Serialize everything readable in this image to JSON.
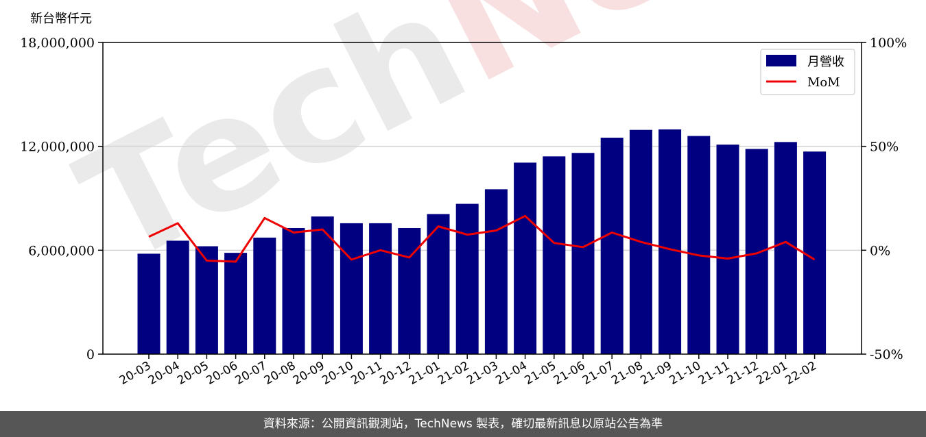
{
  "watermark": "TechNews",
  "footer_text": "資料來源：公開資訊觀測站，TechNews 製表，確切最新訊息以原站公告為準",
  "chart_data": {
    "type": "bar",
    "unit_label": "新台幣仟元",
    "categories": [
      "20-03",
      "20-04",
      "20-05",
      "20-06",
      "20-07",
      "20-08",
      "20-09",
      "20-10",
      "20-11",
      "20-12",
      "21-01",
      "21-02",
      "21-03",
      "21-04",
      "21-05",
      "21-06",
      "21-07",
      "21-08",
      "21-09",
      "21-10",
      "21-11",
      "21-12",
      "22-01",
      "22-02"
    ],
    "series": [
      {
        "name": "月營收",
        "type": "bar",
        "axis": "left",
        "color": "#000080",
        "values": [
          5800000,
          6550000,
          6230000,
          5850000,
          6730000,
          7280000,
          7950000,
          7560000,
          7560000,
          7280000,
          8090000,
          8680000,
          9520000,
          11060000,
          11420000,
          11620000,
          12500000,
          12950000,
          12980000,
          12600000,
          12100000,
          11850000,
          12250000,
          11700000
        ]
      },
      {
        "name": "MoM",
        "type": "line",
        "axis": "right",
        "color": "#ee0000",
        "values": [
          6.5,
          13,
          -5,
          -5.5,
          15.5,
          8.5,
          10,
          -4.5,
          0,
          -3.5,
          11.5,
          7.5,
          9.5,
          16.5,
          3.5,
          1.5,
          8.5,
          4,
          0.5,
          -2.5,
          -4,
          -1.5,
          4,
          -4.5
        ]
      }
    ],
    "left_axis": {
      "min": 0,
      "max": 18000000,
      "ticks": [
        0,
        6000000,
        12000000,
        18000000
      ],
      "tick_labels": [
        "0",
        "6,000,000",
        "12,000,000",
        "18,000,000"
      ]
    },
    "right_axis": {
      "min": -50,
      "max": 100,
      "ticks": [
        -50,
        0,
        50,
        100
      ],
      "tick_labels": [
        "-50%",
        "0%",
        "50%",
        "100%"
      ]
    },
    "grid": "horizontal",
    "legend_position": "top-right"
  }
}
